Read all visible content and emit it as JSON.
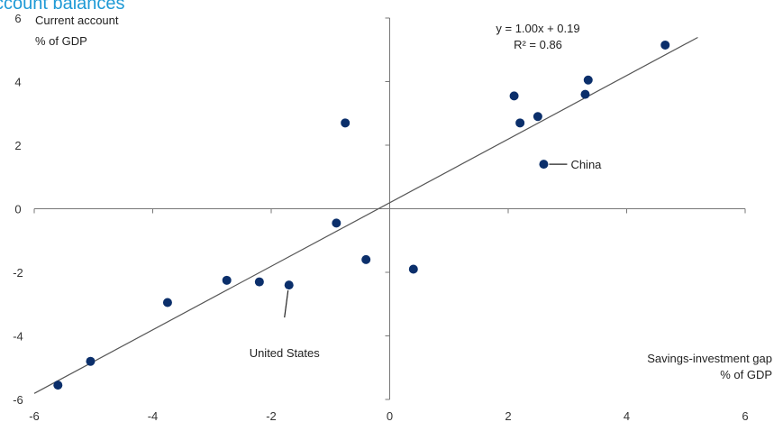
{
  "chart_data": {
    "type": "scatter",
    "title": "ccount balances",
    "ylabel": "Current account",
    "ylabel_unit": "% of GDP",
    "xlabel": "Savings-investment  gap",
    "xlabel_unit": "% of GDP",
    "xlim": [
      -6,
      6
    ],
    "ylim": [
      -6,
      6
    ],
    "xticks": [
      "-6",
      "-4",
      "-2",
      "0",
      "2",
      "4",
      "6"
    ],
    "yticks": [
      "-6",
      "-4",
      "-2",
      "0",
      "2",
      "4",
      "6"
    ],
    "grid": false,
    "legend": "none",
    "equation": "y = 1.00x + 0.19",
    "r_squared": "R² = 0.86",
    "trendline": {
      "slope": 1.0,
      "intercept": 0.19,
      "x_range": [
        -6,
        5.2
      ]
    },
    "points": [
      {
        "x": -5.6,
        "y": -5.55
      },
      {
        "x": -5.05,
        "y": -4.8
      },
      {
        "x": -3.75,
        "y": -2.95
      },
      {
        "x": -2.75,
        "y": -2.25
      },
      {
        "x": -2.2,
        "y": -2.3
      },
      {
        "x": -1.7,
        "y": -2.4
      },
      {
        "x": -0.9,
        "y": -0.45
      },
      {
        "x": -0.75,
        "y": 2.7
      },
      {
        "x": -0.4,
        "y": -1.6
      },
      {
        "x": 0.4,
        "y": -1.9
      },
      {
        "x": 2.1,
        "y": 3.55
      },
      {
        "x": 2.2,
        "y": 2.7
      },
      {
        "x": 2.5,
        "y": 2.9
      },
      {
        "x": 2.6,
        "y": 1.4
      },
      {
        "x": 3.3,
        "y": 3.6
      },
      {
        "x": 3.35,
        "y": 4.05
      },
      {
        "x": 4.65,
        "y": 5.15
      }
    ],
    "annotations": [
      {
        "text": "China",
        "x": 2.6,
        "y": 1.4
      },
      {
        "text": "United States",
        "x": -1.7,
        "y": -2.4
      }
    ],
    "colors": {
      "point": "#0b2f6b",
      "line": "#555555",
      "axis": "#777777",
      "title": "#1f9ad6"
    }
  }
}
